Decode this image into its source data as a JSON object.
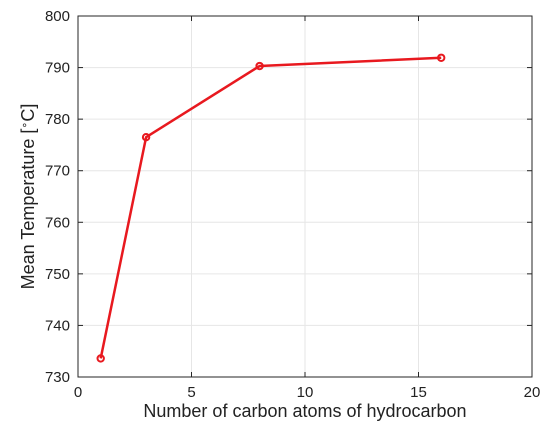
{
  "chart_data": {
    "type": "line",
    "title": "",
    "xlabel": "Number of carbon atoms of hydrocarbon",
    "ylabel_prefix": "Mean Temperature [",
    "ylabel_degree": "∘",
    "ylabel_suffix": "C]",
    "xlim": [
      0,
      20
    ],
    "ylim": [
      730,
      800
    ],
    "xticks": [
      0,
      5,
      10,
      15,
      20
    ],
    "yticks": [
      730,
      740,
      750,
      760,
      770,
      780,
      790,
      800
    ],
    "grid": true,
    "legend": "none",
    "series": [
      {
        "color": "#e8191f",
        "marker": "circle",
        "x": [
          1,
          3,
          8,
          16
        ],
        "y": [
          733.6,
          776.5,
          790.3,
          791.9
        ]
      }
    ]
  }
}
